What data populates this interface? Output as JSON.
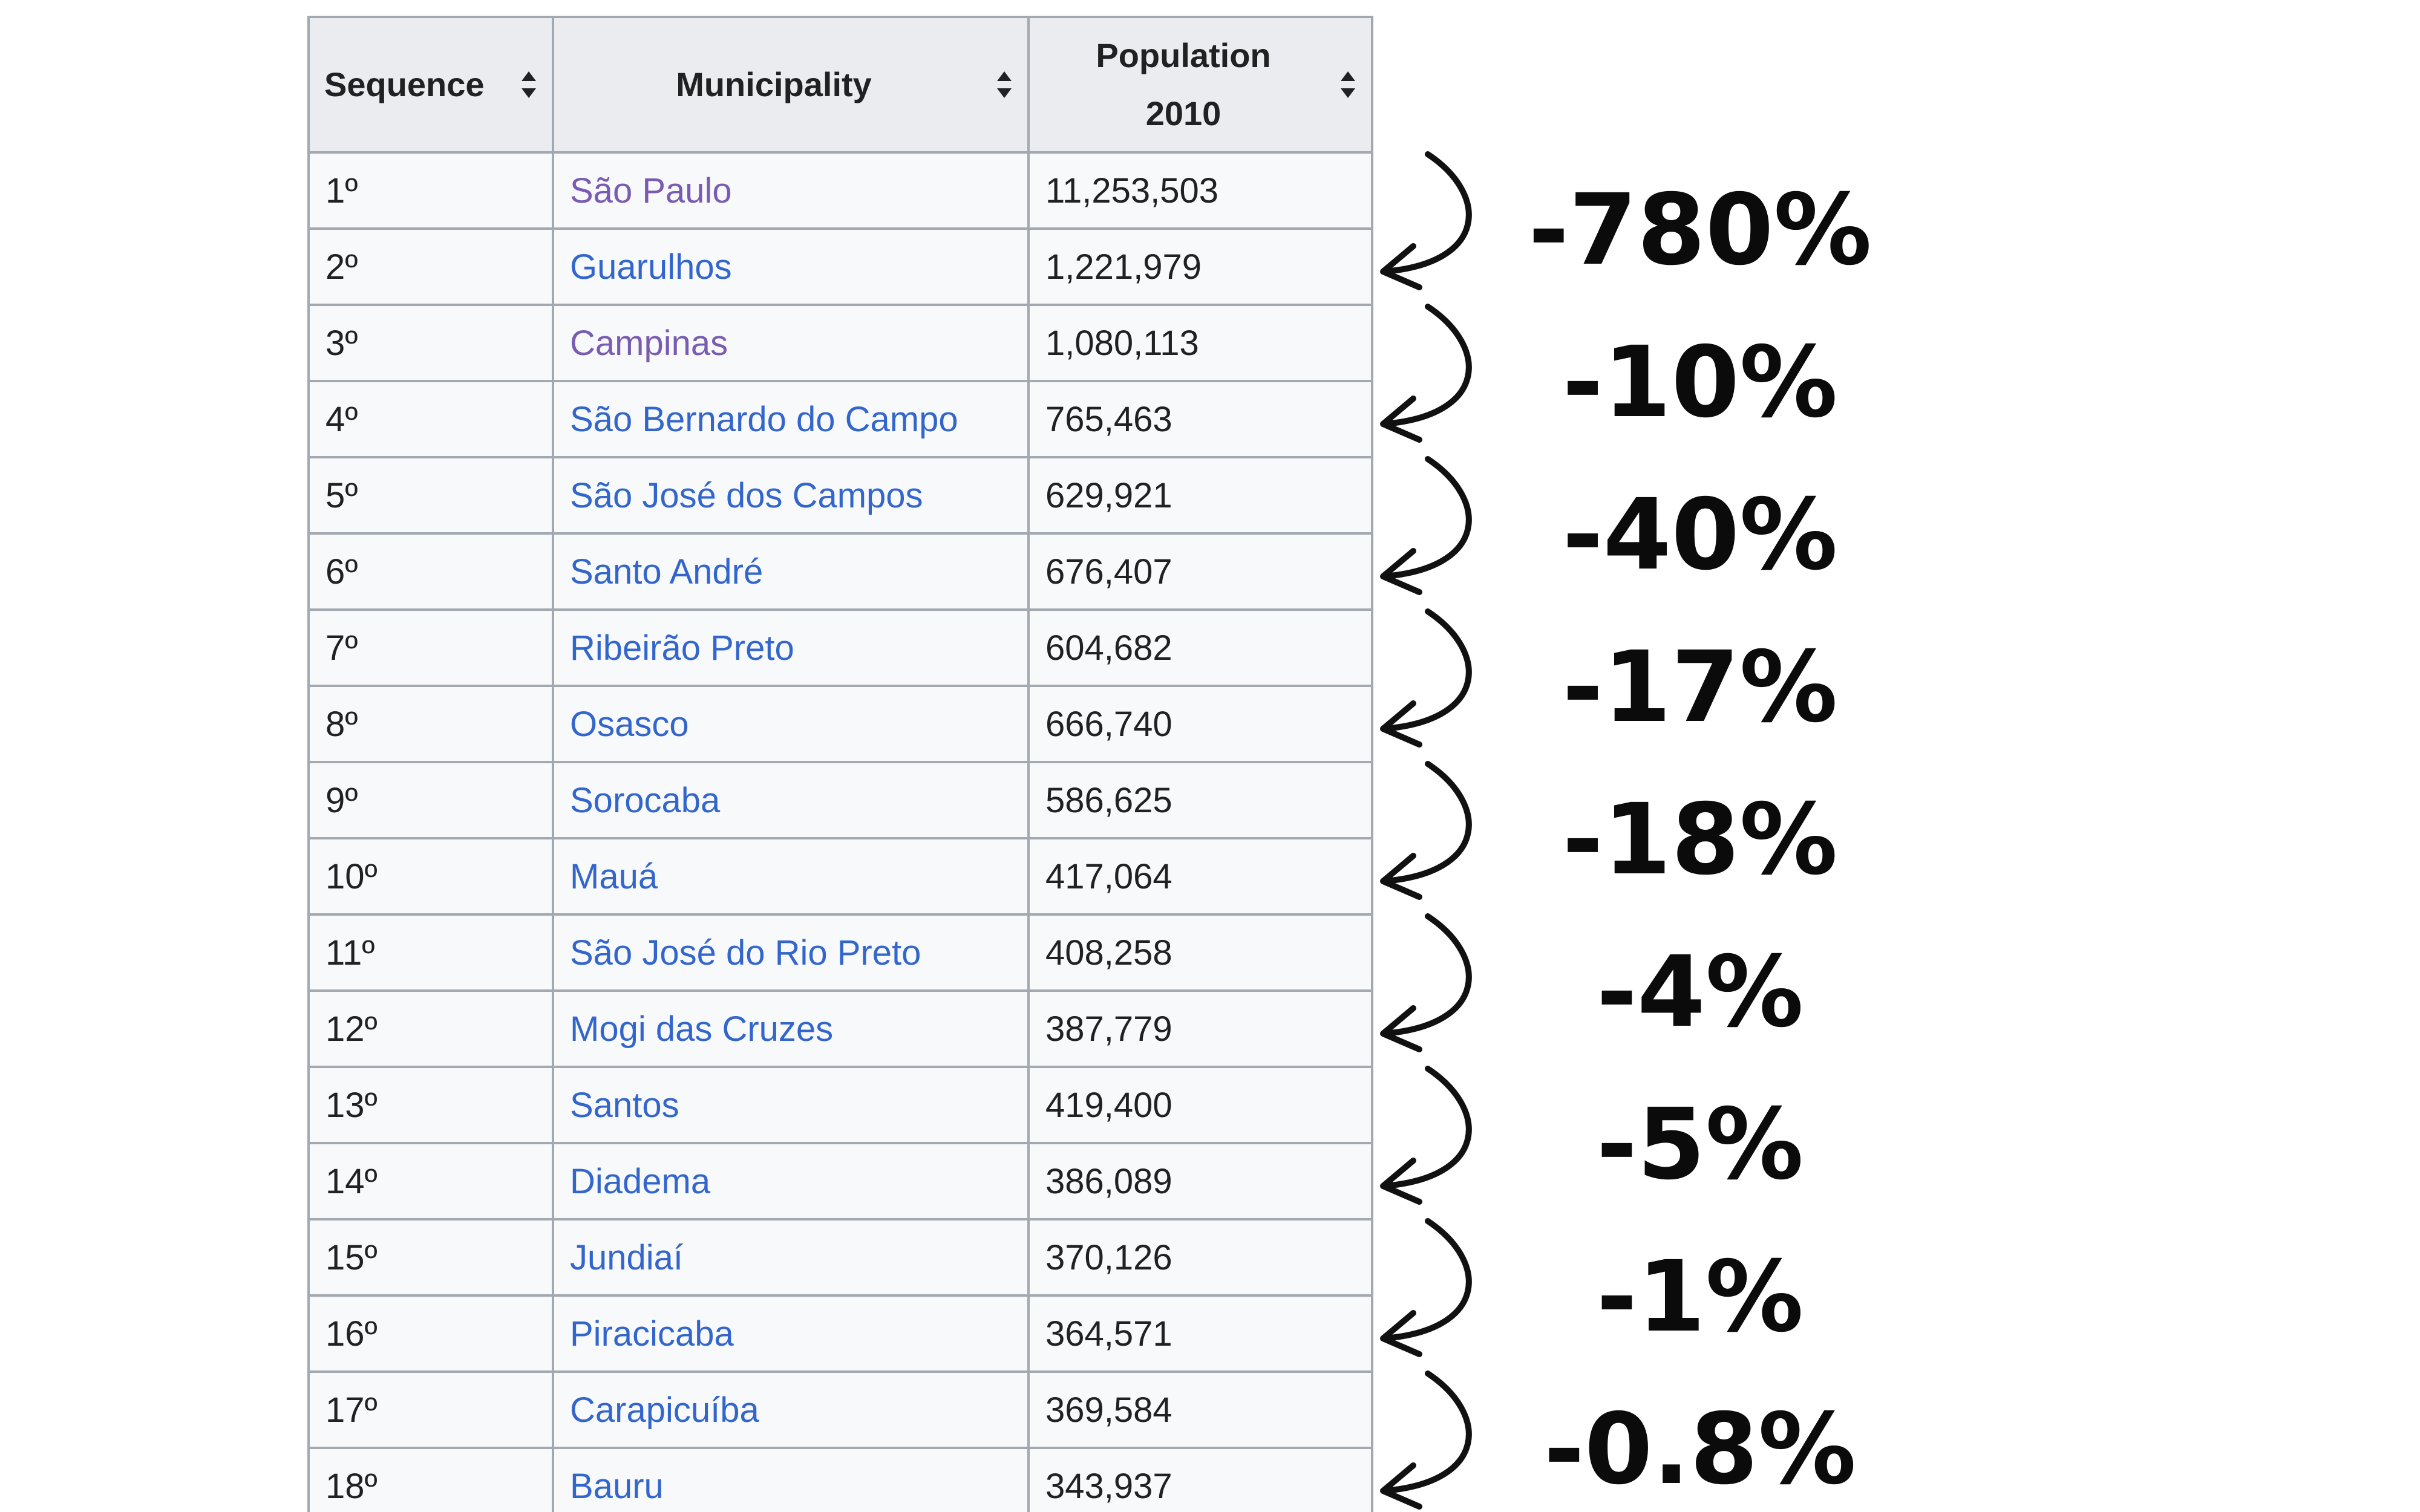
{
  "table": {
    "headers": {
      "sequence": "Sequence",
      "municipality": "Municipality",
      "population_line1": "Population",
      "population_line2": "2010"
    },
    "rows": [
      {
        "seq": "1º",
        "name": "São Paulo",
        "pop": "11,253,503",
        "visited": true
      },
      {
        "seq": "2º",
        "name": "Guarulhos",
        "pop": "1,221,979",
        "visited": false
      },
      {
        "seq": "3º",
        "name": "Campinas",
        "pop": "1,080,113",
        "visited": true
      },
      {
        "seq": "4º",
        "name": "São Bernardo do Campo",
        "pop": "765,463",
        "visited": false
      },
      {
        "seq": "5º",
        "name": "São José dos Campos",
        "pop": "629,921",
        "visited": false
      },
      {
        "seq": "6º",
        "name": "Santo André",
        "pop": "676,407",
        "visited": false
      },
      {
        "seq": "7º",
        "name": "Ribeirão Preto",
        "pop": "604,682",
        "visited": false
      },
      {
        "seq": "8º",
        "name": "Osasco",
        "pop": "666,740",
        "visited": false
      },
      {
        "seq": "9º",
        "name": "Sorocaba",
        "pop": "586,625",
        "visited": false
      },
      {
        "seq": "10º",
        "name": "Mauá",
        "pop": "417,064",
        "visited": false
      },
      {
        "seq": "11º",
        "name": "São José do Rio Preto",
        "pop": "408,258",
        "visited": false
      },
      {
        "seq": "12º",
        "name": "Mogi das Cruzes",
        "pop": "387,779",
        "visited": false
      },
      {
        "seq": "13º",
        "name": "Santos",
        "pop": "419,400",
        "visited": false
      },
      {
        "seq": "14º",
        "name": "Diadema",
        "pop": "386,089",
        "visited": false
      },
      {
        "seq": "15º",
        "name": "Jundiaí",
        "pop": "370,126",
        "visited": false
      },
      {
        "seq": "16º",
        "name": "Piracicaba",
        "pop": "364,571",
        "visited": false
      },
      {
        "seq": "17º",
        "name": "Carapicuíba",
        "pop": "369,584",
        "visited": false
      },
      {
        "seq": "18º",
        "name": "Bauru",
        "pop": "343,937",
        "visited": false
      }
    ]
  },
  "annotations": [
    {
      "from_row": 0,
      "label": "-780%"
    },
    {
      "from_row": 2,
      "label": "-10%"
    },
    {
      "from_row": 4,
      "label": "-40%"
    },
    {
      "from_row": 6,
      "label": "-17%"
    },
    {
      "from_row": 8,
      "label": "-18%"
    },
    {
      "from_row": 10,
      "label": "-4%"
    },
    {
      "from_row": 12,
      "label": "-5%"
    },
    {
      "from_row": 14,
      "label": "-1%"
    },
    {
      "from_row": 16,
      "label": "-0.8%"
    }
  ],
  "colors": {
    "link": "#3366cc",
    "visited_link": "#795cb2",
    "header_bg": "#eaecf0",
    "cell_bg": "#f8f9fa",
    "border": "#a2a9b1",
    "annotation": "#111111"
  }
}
